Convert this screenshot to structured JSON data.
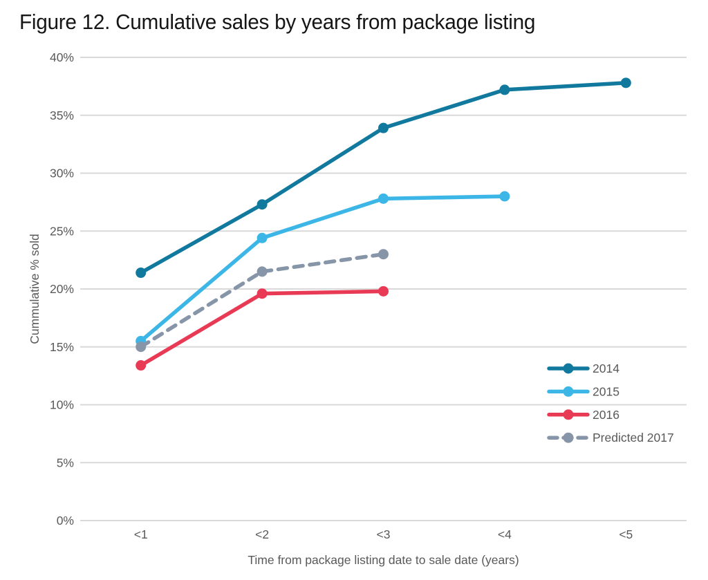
{
  "title": "Figure 12. Cumulative sales by years from package listing",
  "chart_data": {
    "type": "line",
    "title": "Figure 12. Cumulative sales by years from package listing",
    "categories": [
      "<1",
      "<2",
      "<3",
      "<4",
      "<5"
    ],
    "series": [
      {
        "name": "2014",
        "color": "#12799e",
        "style": "solid",
        "values": [
          21.4,
          27.3,
          33.9,
          37.2,
          37.8
        ]
      },
      {
        "name": "2015",
        "color": "#3cb6e6",
        "style": "solid",
        "values": [
          15.5,
          24.4,
          27.8,
          28.0
        ]
      },
      {
        "name": "2016",
        "color": "#e93a55",
        "style": "solid",
        "values": [
          13.4,
          19.6,
          19.8
        ]
      },
      {
        "name": "Predicted 2017",
        "color": "#8795a8",
        "style": "dashed",
        "values": [
          15.0,
          21.5,
          23.0
        ]
      }
    ],
    "xlabel": "Time from package listing date to sale date (years)",
    "ylabel": "Cummulative % sold",
    "ylim": [
      0,
      40
    ],
    "ytick_step": 5,
    "ytick_suffix": "%",
    "grid": "horizontal",
    "legend_position": "inside-right"
  },
  "colors": {
    "grid": "#d9d9d9",
    "axis_text": "#595959",
    "title_text": "#161616"
  }
}
